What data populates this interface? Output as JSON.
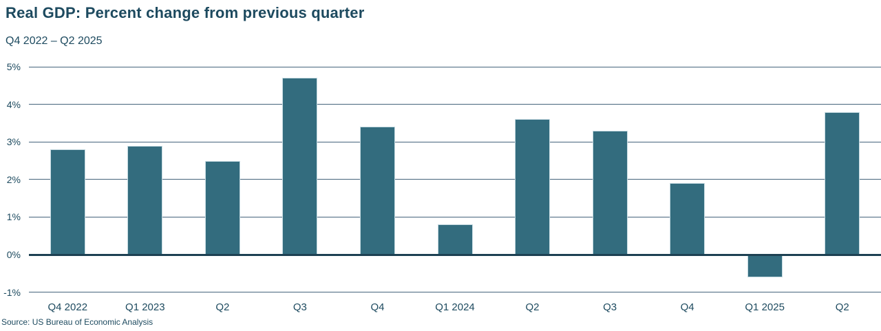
{
  "colors": {
    "bar_fill": "#336c7e",
    "bar_stroke": "#c5dae1",
    "gridline": "#44637a",
    "zero_line": "#1d4052",
    "text": "#1d4a5f",
    "background": "#ffffff"
  },
  "chart_data": {
    "type": "bar",
    "title": "Real GDP: Percent change from previous quarter",
    "subtitle": "Q4 2022 – Q2 2025",
    "source": "Source: US Bureau of Economic Analysis",
    "categories": [
      "Q4 2022",
      "Q1 2023",
      "Q2",
      "Q3",
      "Q4",
      "Q1 2024",
      "Q2",
      "Q3",
      "Q4",
      "Q1 2025",
      "Q2"
    ],
    "values": [
      2.8,
      2.9,
      2.5,
      4.7,
      3.4,
      0.8,
      3.6,
      3.3,
      1.9,
      -0.6,
      3.8
    ],
    "xlabel": "",
    "ylabel": "Percent change from previous quarter",
    "ylim": [
      -1,
      5
    ],
    "yticks": [
      5,
      4,
      3,
      2,
      1,
      0,
      -1
    ],
    "ytick_labels": [
      "5%",
      "4%",
      "3%",
      "2%",
      "1%",
      "0%",
      "-1%"
    ],
    "grid": true,
    "legend": false
  }
}
